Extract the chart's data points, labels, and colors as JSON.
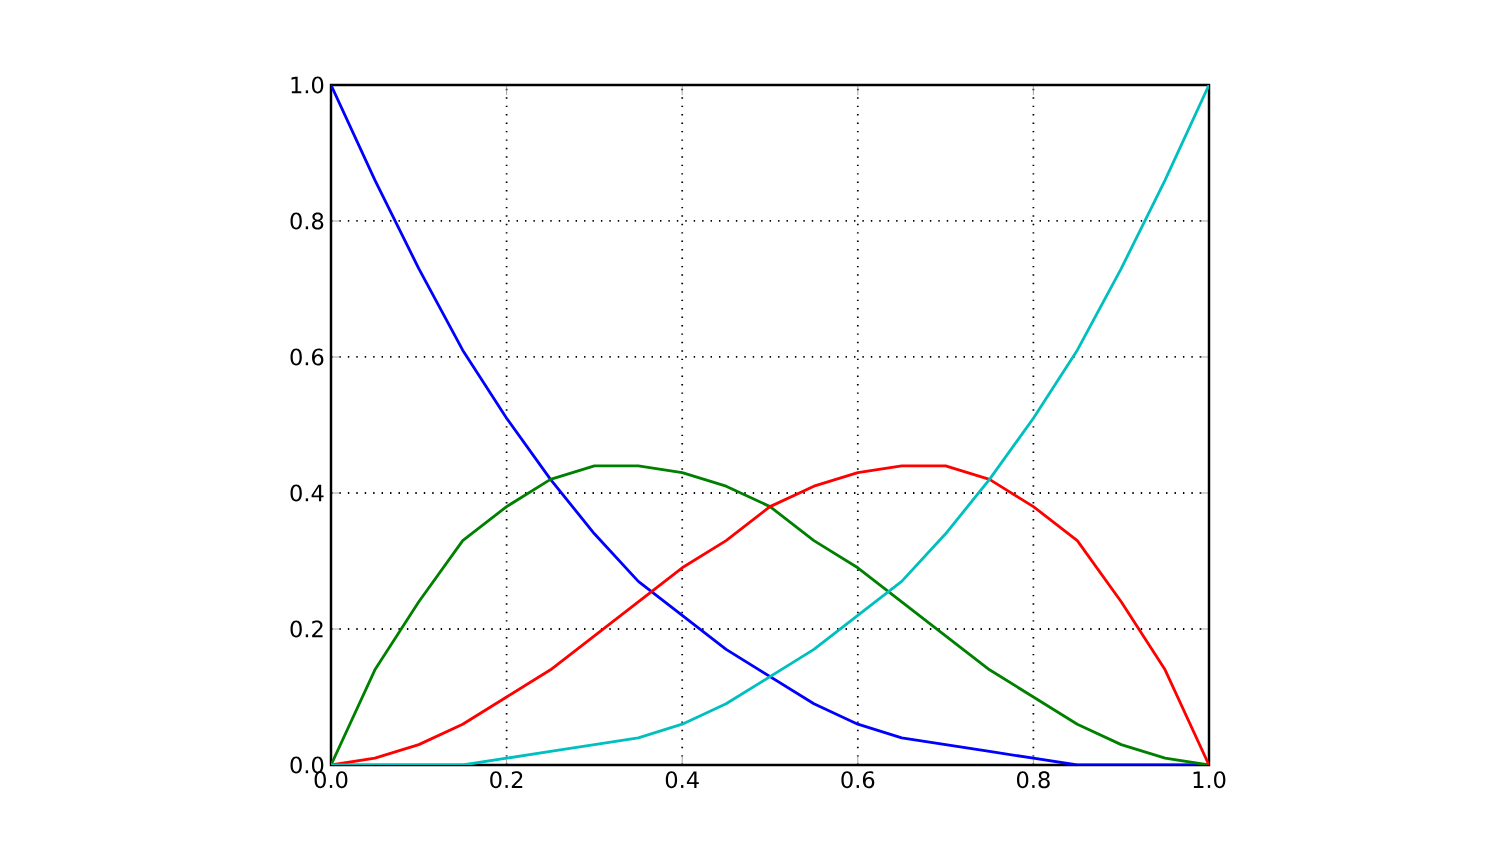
{
  "chart_data": {
    "type": "line",
    "x": [
      0,
      0.05,
      0.1,
      0.15,
      0.2,
      0.25,
      0.3,
      0.35,
      0.4,
      0.45,
      0.5,
      0.55,
      0.6,
      0.65,
      0.7,
      0.75,
      0.8,
      0.85,
      0.9,
      0.95,
      1
    ],
    "series": [
      {
        "color": "#0000ff",
        "values": [
          1,
          0.86,
          0.73,
          0.61,
          0.51,
          0.42,
          0.34,
          0.27,
          0.22,
          0.17,
          0.13,
          0.09,
          0.06,
          0.04,
          0.03,
          0.02,
          0.01,
          0,
          0,
          0,
          0
        ]
      },
      {
        "color": "#008000",
        "values": [
          0,
          0.14,
          0.24,
          0.33,
          0.38,
          0.42,
          0.44,
          0.44,
          0.43,
          0.41,
          0.38,
          0.33,
          0.29,
          0.24,
          0.19,
          0.14,
          0.1,
          0.06,
          0.03,
          0.01,
          0
        ]
      },
      {
        "color": "#ff0000",
        "values": [
          0,
          0.01,
          0.03,
          0.06,
          0.1,
          0.14,
          0.19,
          0.24,
          0.29,
          0.33,
          0.38,
          0.41,
          0.43,
          0.44,
          0.44,
          0.42,
          0.38,
          0.33,
          0.24,
          0.14,
          0
        ]
      },
      {
        "color": "#00bfbf",
        "values": [
          0,
          0,
          0,
          0,
          0.01,
          0.02,
          0.03,
          0.04,
          0.06,
          0.09,
          0.13,
          0.17,
          0.22,
          0.27,
          0.34,
          0.42,
          0.51,
          0.61,
          0.73,
          0.86,
          1
        ]
      }
    ],
    "xlim": [
      0,
      1
    ],
    "ylim": [
      0,
      1
    ],
    "xticks": [
      {
        "value": 0,
        "label": "0.0"
      },
      0.2,
      0.4,
      0.6,
      0.8,
      {
        "value": 1,
        "label": "1.0"
      }
    ],
    "yticks": [
      {
        "value": 0,
        "label": "0.0"
      },
      0.2,
      0.4,
      0.6,
      0.8,
      {
        "value": 1,
        "label": "1.0"
      }
    ],
    "grid": true,
    "line_style": "solid",
    "marker": "none"
  }
}
